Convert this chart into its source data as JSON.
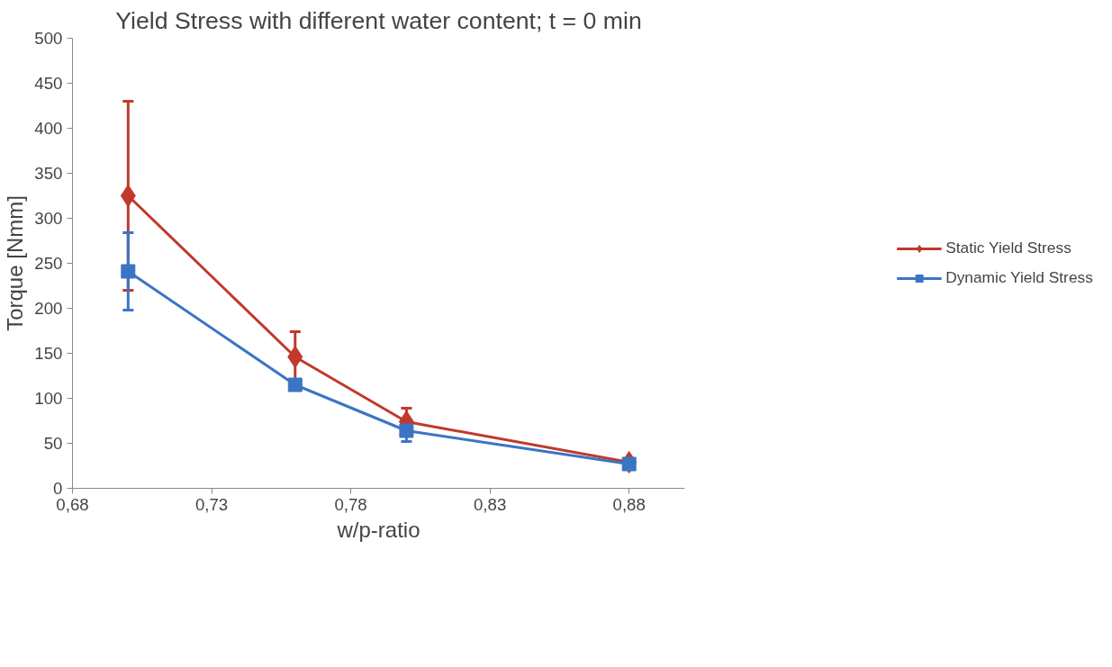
{
  "chart_data": {
    "type": "line",
    "title": "Yield Stress with different water content; t = 0 min",
    "xlabel": "w/p-ratio",
    "ylabel": "Torque [Nmm]",
    "x": [
      0.7,
      0.76,
      0.8,
      0.88
    ],
    "series": [
      {
        "name": "Static Yield Stress",
        "color": "#c0392b",
        "marker": "diamond",
        "values": [
          325,
          146,
          74,
          29
        ],
        "errors": [
          105,
          28,
          15,
          null
        ]
      },
      {
        "name": "Dynamic Yield Stress",
        "color": "#3a75c4",
        "marker": "square",
        "values": [
          241,
          115,
          64,
          27
        ],
        "errors": [
          43,
          null,
          12,
          null
        ]
      }
    ],
    "xlim": [
      0.68,
      0.9
    ],
    "xticks": [
      {
        "value": 0.68,
        "label": "0,68"
      },
      {
        "value": 0.73,
        "label": "0,73"
      },
      {
        "value": 0.78,
        "label": "0,78"
      },
      {
        "value": 0.83,
        "label": "0,83"
      },
      {
        "value": 0.88,
        "label": "0,88"
      }
    ],
    "ylim": [
      0,
      500
    ],
    "yticks": [
      0,
      50,
      100,
      150,
      200,
      250,
      300,
      350,
      400,
      450,
      500
    ],
    "grid": false,
    "legend": "right",
    "line_style": "solid"
  }
}
